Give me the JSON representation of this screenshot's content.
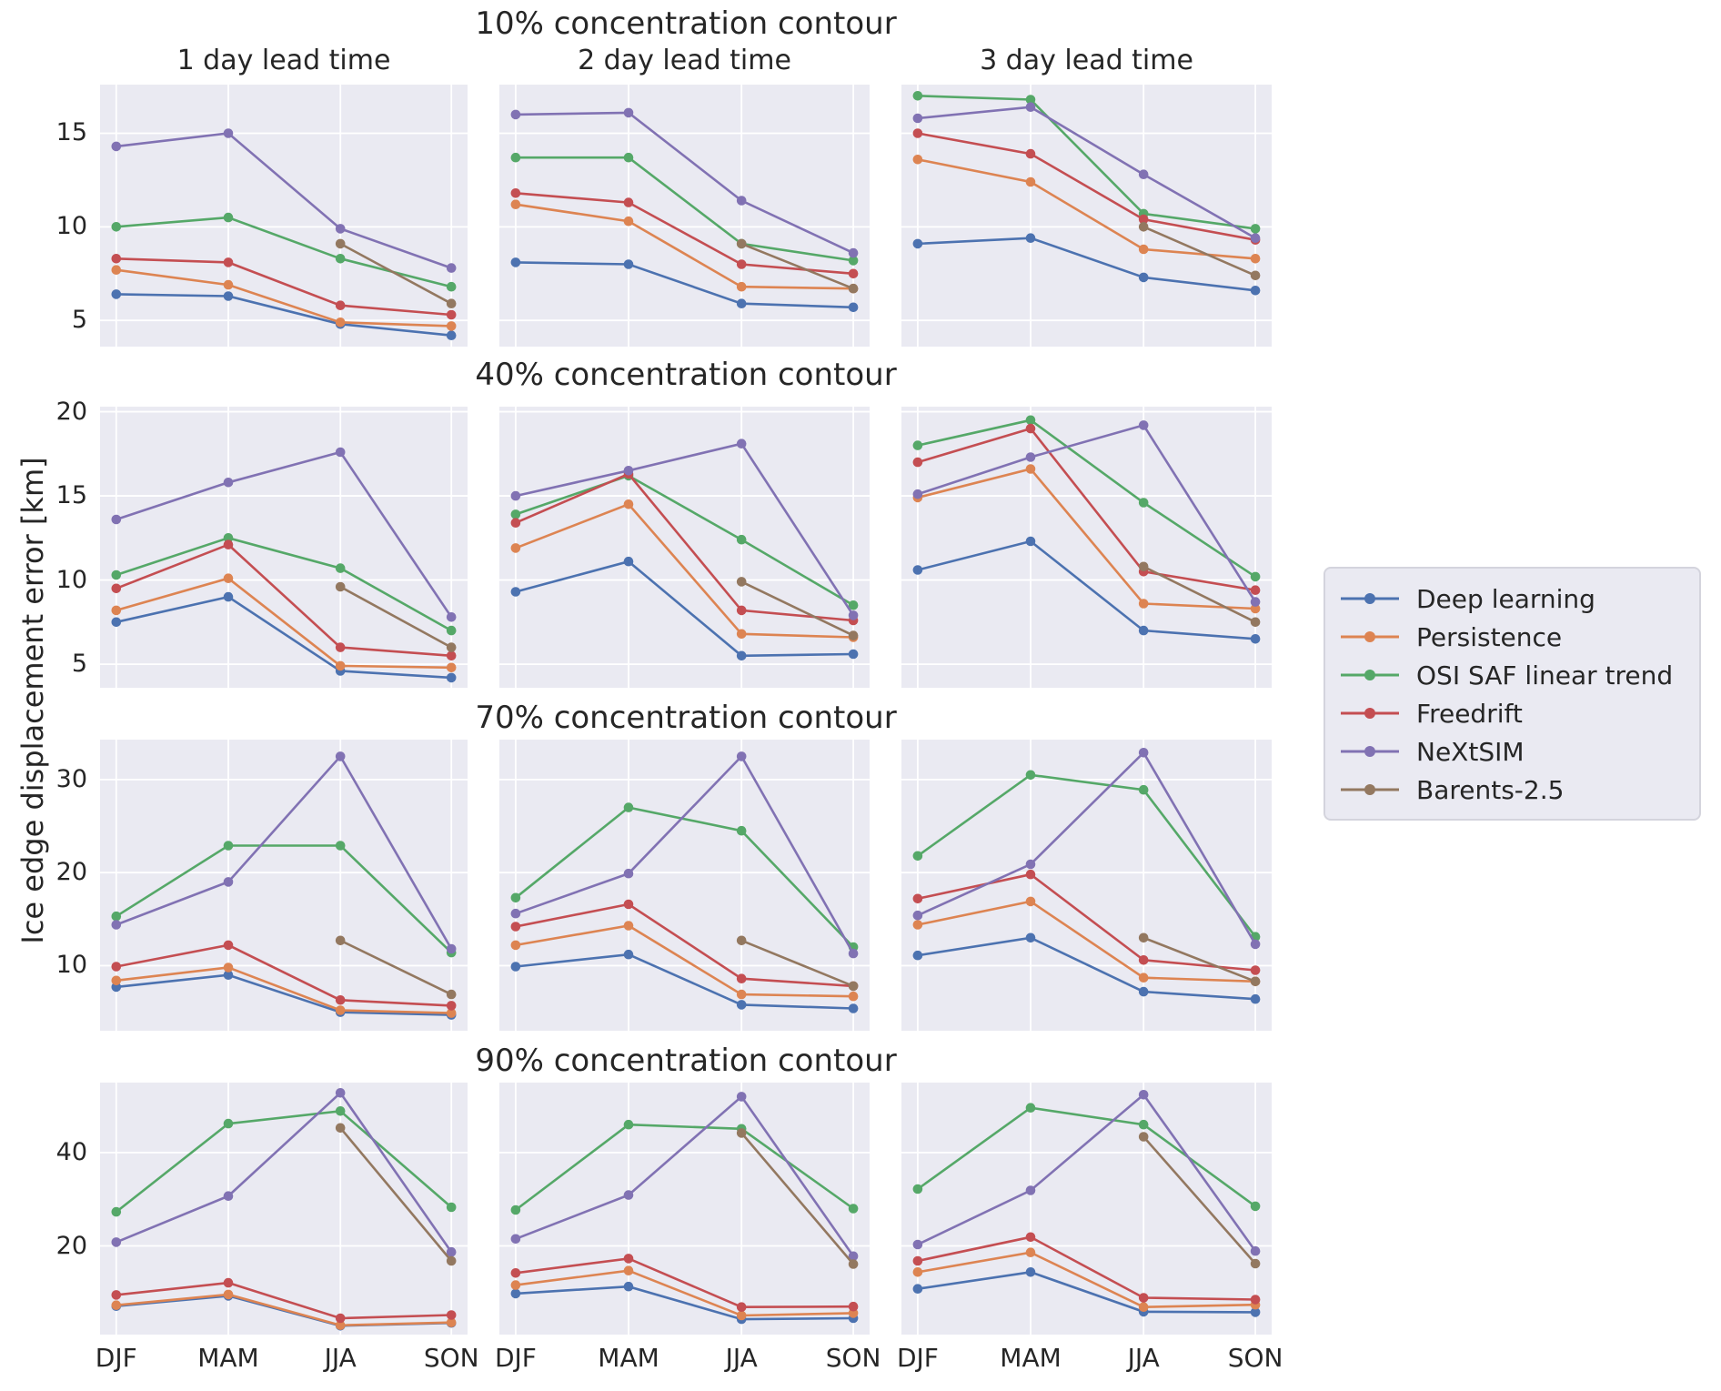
{
  "chart_data": {
    "type": "line",
    "ylabel": "Ice edge displacement error [km]",
    "categories": [
      "DJF",
      "MAM",
      "JJA",
      "SON"
    ],
    "col_titles": [
      "1 day lead time",
      "2 day lead time",
      "3 day lead time"
    ],
    "legend": [
      "Deep learning",
      "Persistence",
      "OSI SAF linear trend",
      "Freedrift",
      "NeXtSIM",
      "Barents-2.5"
    ],
    "colors": [
      "#4C72B0",
      "#DD8452",
      "#55A868",
      "#C44E52",
      "#8172B3",
      "#937860"
    ],
    "grid": true,
    "legend_position": "center right",
    "rows": [
      {
        "title": "10% concentration contour",
        "ylim": [
          3.6,
          17.6
        ],
        "yticks": [
          5,
          10,
          15
        ],
        "panels": [
          {
            "lead": "1 day lead time",
            "series": [
              [
                6.4,
                6.3,
                4.8,
                4.2
              ],
              [
                7.7,
                6.9,
                4.9,
                4.7
              ],
              [
                10.0,
                10.5,
                8.3,
                6.8
              ],
              [
                8.3,
                8.1,
                5.8,
                5.3
              ],
              [
                14.3,
                15.0,
                9.9,
                7.8
              ],
              [
                null,
                null,
                9.1,
                5.9
              ]
            ]
          },
          {
            "lead": "2 day lead time",
            "series": [
              [
                8.1,
                8.0,
                5.9,
                5.7
              ],
              [
                11.2,
                10.3,
                6.8,
                6.7
              ],
              [
                13.7,
                13.7,
                9.1,
                8.2
              ],
              [
                11.8,
                11.3,
                8.0,
                7.5
              ],
              [
                16.0,
                16.1,
                11.4,
                8.6
              ],
              [
                null,
                null,
                9.1,
                6.7
              ]
            ]
          },
          {
            "lead": "3 day lead time",
            "series": [
              [
                9.1,
                9.4,
                7.3,
                6.6
              ],
              [
                13.6,
                12.4,
                8.8,
                8.3
              ],
              [
                17.0,
                16.8,
                10.7,
                9.9
              ],
              [
                15.0,
                13.9,
                10.4,
                9.3
              ],
              [
                15.8,
                16.4,
                12.8,
                9.4
              ],
              [
                null,
                null,
                10.0,
                7.4
              ]
            ]
          }
        ]
      },
      {
        "title": "40% concentration contour",
        "ylim": [
          3.6,
          20.3
        ],
        "yticks": [
          5,
          10,
          15,
          20
        ],
        "panels": [
          {
            "lead": "1 day lead time",
            "series": [
              [
                7.5,
                9.0,
                4.6,
                4.2
              ],
              [
                8.2,
                10.1,
                4.9,
                4.8
              ],
              [
                10.3,
                12.5,
                10.7,
                7.0
              ],
              [
                9.5,
                12.1,
                6.0,
                5.5
              ],
              [
                13.6,
                15.8,
                17.6,
                7.8
              ],
              [
                null,
                null,
                9.6,
                6.0
              ]
            ]
          },
          {
            "lead": "2 day lead time",
            "series": [
              [
                9.3,
                11.1,
                5.5,
                5.6
              ],
              [
                11.9,
                14.5,
                6.8,
                6.6
              ],
              [
                13.9,
                16.2,
                12.4,
                8.5
              ],
              [
                13.4,
                16.3,
                8.2,
                7.6
              ],
              [
                15.0,
                16.5,
                18.1,
                7.9
              ],
              [
                null,
                null,
                9.9,
                6.7
              ]
            ]
          },
          {
            "lead": "3 day lead time",
            "series": [
              [
                10.6,
                12.3,
                7.0,
                6.5
              ],
              [
                14.9,
                16.6,
                8.6,
                8.3
              ],
              [
                18.0,
                19.5,
                14.6,
                10.2
              ],
              [
                17.0,
                19.0,
                10.5,
                9.4
              ],
              [
                15.1,
                17.3,
                19.2,
                8.7
              ],
              [
                null,
                null,
                10.8,
                7.5
              ]
            ]
          }
        ]
      },
      {
        "title": "70% concentration contour",
        "ylim": [
          3.0,
          34.3
        ],
        "yticks": [
          10,
          20,
          30
        ],
        "panels": [
          {
            "lead": "1 day lead time",
            "series": [
              [
                7.7,
                9.0,
                5.0,
                4.7
              ],
              [
                8.4,
                9.8,
                5.2,
                4.9
              ],
              [
                15.3,
                22.9,
                22.9,
                11.4
              ],
              [
                9.9,
                12.2,
                6.3,
                5.7
              ],
              [
                14.4,
                19.0,
                32.5,
                11.8
              ],
              [
                null,
                null,
                12.7,
                6.9
              ]
            ]
          },
          {
            "lead": "2 day lead time",
            "series": [
              [
                9.9,
                11.2,
                5.8,
                5.4
              ],
              [
                12.2,
                14.3,
                6.9,
                6.7
              ],
              [
                17.3,
                27.0,
                24.5,
                12.0
              ],
              [
                14.2,
                16.6,
                8.6,
                7.8
              ],
              [
                15.6,
                19.9,
                32.5,
                11.3
              ],
              [
                null,
                null,
                12.7,
                7.8
              ]
            ]
          },
          {
            "lead": "3 day lead time",
            "series": [
              [
                11.1,
                13.0,
                7.2,
                6.4
              ],
              [
                14.4,
                16.9,
                8.7,
                8.3
              ],
              [
                21.8,
                30.5,
                28.9,
                13.1
              ],
              [
                17.2,
                19.8,
                10.6,
                9.5
              ],
              [
                15.4,
                20.9,
                32.9,
                12.3
              ],
              [
                null,
                null,
                13.0,
                8.3
              ]
            ]
          }
        ]
      },
      {
        "title": "90% concentration contour",
        "ylim": [
          1.0,
          55.0
        ],
        "yticks": [
          20,
          40
        ],
        "panels": [
          {
            "lead": "1 day lead time",
            "series": [
              [
                7.1,
                9.3,
                2.9,
                3.5
              ],
              [
                7.3,
                9.6,
                3.0,
                3.6
              ],
              [
                27.3,
                46.2,
                48.9,
                28.3
              ],
              [
                9.5,
                12.1,
                4.5,
                5.2
              ],
              [
                20.8,
                30.7,
                52.8,
                18.7
              ],
              [
                null,
                null,
                45.3,
                16.8
              ]
            ]
          },
          {
            "lead": "2 day lead time",
            "series": [
              [
                9.8,
                11.3,
                4.3,
                4.5
              ],
              [
                11.6,
                14.7,
                5.1,
                5.6
              ],
              [
                27.7,
                46.0,
                45.1,
                28.0
              ],
              [
                14.2,
                17.3,
                6.9,
                7.0
              ],
              [
                21.5,
                30.9,
                52.0,
                17.8
              ],
              [
                null,
                null,
                44.2,
                16.1
              ]
            ]
          },
          {
            "lead": "3 day lead time",
            "series": [
              [
                10.8,
                14.4,
                5.9,
                5.8
              ],
              [
                14.4,
                18.6,
                6.9,
                7.4
              ],
              [
                32.2,
                49.6,
                46.0,
                28.5
              ],
              [
                16.8,
                21.9,
                8.9,
                8.5
              ],
              [
                20.3,
                31.9,
                52.4,
                18.9
              ],
              [
                null,
                null,
                43.4,
                16.2
              ]
            ]
          }
        ]
      }
    ]
  },
  "style": {
    "panel_bg": "#EAEAF2",
    "grid_color": "#ffffff",
    "text_color": "#262626"
  }
}
